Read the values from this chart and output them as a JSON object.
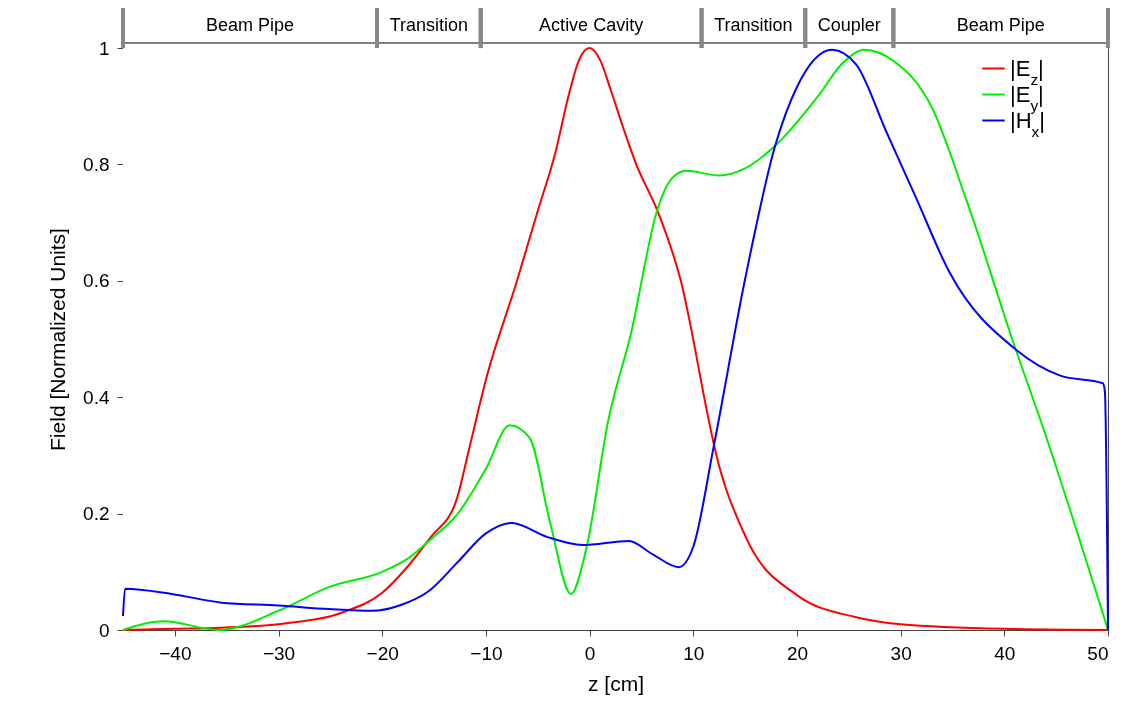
{
  "chart_data": {
    "type": "line",
    "xlabel": "z [cm]",
    "ylabel": "Field [Normalized Units]",
    "xlim": [
      -45,
      50
    ],
    "xticks": [
      -40,
      -30,
      -20,
      -10,
      0,
      10,
      20,
      30,
      40,
      50
    ],
    "ylim": [
      0,
      1
    ],
    "yticks": [
      0,
      0.2,
      0.4,
      0.6,
      0.8,
      1
    ],
    "legend": "top right",
    "line_style": "solid",
    "marker": "none",
    "bands": [
      {
        "axis": "x",
        "from": -45,
        "to": -20.5,
        "label": "Beam Pipe"
      },
      {
        "axis": "x",
        "from": -20.5,
        "to": -10.5,
        "label": "Transition"
      },
      {
        "axis": "x",
        "from": -10.5,
        "to": 10.8,
        "label": "Active Cavity"
      },
      {
        "axis": "x",
        "from": 10.8,
        "to": 20.8,
        "label": "Transition"
      },
      {
        "axis": "x",
        "from": 20.8,
        "to": 29.3,
        "label": "Coupler"
      },
      {
        "axis": "x",
        "from": 29.3,
        "to": 50,
        "label": "Beam Pipe"
      }
    ],
    "series": [
      {
        "name": "|E$_{z}$|",
        "color": "#ff0000",
        "x": [
          -45,
          -40,
          -35.5,
          -30,
          -23.7,
          -20,
          -17.5,
          -15.3,
          -12.9,
          -11.5,
          -10,
          -7,
          -5,
          -3.3,
          -2,
          -1,
          0,
          1,
          2,
          3.3,
          4.5,
          6.55,
          8.8,
          11.5,
          12,
          15,
          20,
          25.7,
          30,
          40,
          50
        ],
        "values": [
          0,
          0.002,
          0.004,
          0.01,
          0.031,
          0.064,
          0.11,
          0.16,
          0.22,
          0.32,
          0.43,
          0.6,
          0.72,
          0.82,
          0.92,
          0.98,
          1,
          0.98,
          0.93,
          0.86,
          0.8,
          0.72,
          0.6,
          0.36,
          0.318,
          0.162,
          0.06,
          0.022,
          0.01,
          0.002,
          0
        ]
      },
      {
        "name": "|E$_{y}$|",
        "color": "#00ee00",
        "x": [
          -45,
          -41.1,
          -35.7,
          -30,
          -25.1,
          -20,
          -17.5,
          -15.3,
          -12.7,
          -10,
          -7.7,
          -5.8,
          -3.8,
          -1.8,
          -0.3,
          1.8,
          4,
          6.55,
          7.9,
          9.3,
          12.5,
          15,
          17.9,
          22.2,
          24.3,
          26.5,
          29.3,
          32.9,
          36.4,
          41.1,
          43.5,
          50
        ],
        "values": [
          0,
          0.015,
          0,
          0.033,
          0.074,
          0.1,
          0.123,
          0.156,
          0.2,
          0.277,
          0.352,
          0.331,
          0.184,
          0.062,
          0.141,
          0.36,
          0.51,
          0.723,
          0.775,
          0.789,
          0.781,
          0.793,
          0.832,
          0.921,
          0.972,
          0.997,
          0.978,
          0.902,
          0.736,
          0.482,
          0.36,
          0
        ]
      },
      {
        "name": "|H$_{x}$|",
        "color": "#0000ff",
        "x": [
          -45,
          -44.8,
          -40.3,
          -35.5,
          -30,
          -25.1,
          -21,
          -18.2,
          -15.5,
          -12.7,
          -10,
          -7.5,
          -4.1,
          -0.7,
          3.8,
          6.1,
          8.6,
          10,
          12,
          15,
          17.9,
          20,
          23.4,
          25.7,
          28.6,
          31.5,
          34.7,
          41.1,
          45.4,
          49.5,
          49.7,
          50
        ],
        "values": [
          0.024,
          0.071,
          0.062,
          0.047,
          0.042,
          0.036,
          0.033,
          0.043,
          0.067,
          0.117,
          0.166,
          0.184,
          0.16,
          0.146,
          0.153,
          0.13,
          0.108,
          0.143,
          0.318,
          0.603,
          0.832,
          0.933,
          0.997,
          0.972,
          0.857,
          0.742,
          0.615,
          0.482,
          0.437,
          0.424,
          0.41,
          0
        ]
      }
    ]
  }
}
